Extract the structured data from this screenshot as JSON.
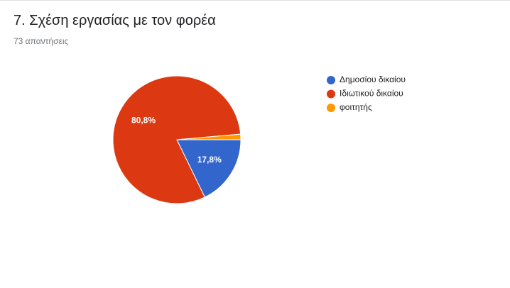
{
  "chart_data": {
    "type": "pie",
    "title": "7. Σχέση εργασίας με τον φορέα",
    "subtitle": "73 απαντήσεις",
    "categories": [
      "Δημοσίου δικαίου",
      "Ιδιωτικού δικαίου",
      "φοιτητής"
    ],
    "values": [
      17.8,
      80.8,
      1.4
    ],
    "value_labels": [
      "17,8%",
      "80,8%",
      null
    ],
    "colors": [
      "#3366cc",
      "#dc3912",
      "#ff9900"
    ],
    "legend": "right"
  }
}
